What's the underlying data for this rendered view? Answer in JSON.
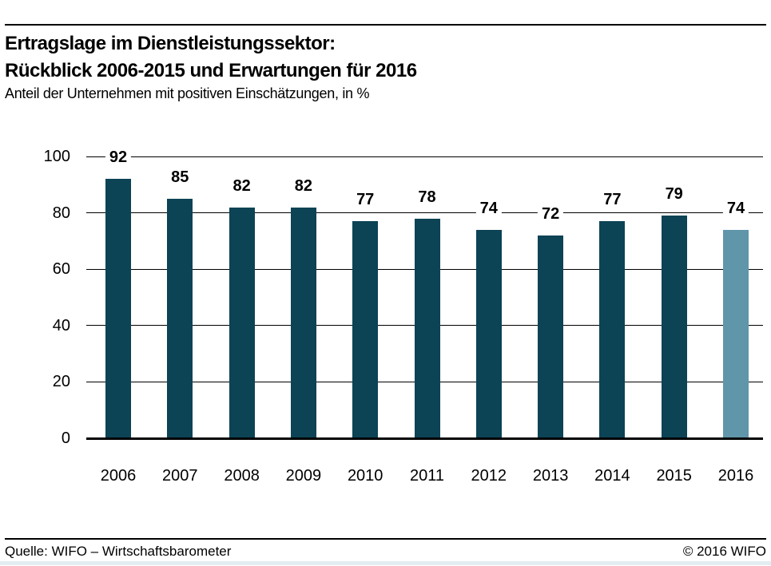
{
  "header": {
    "title_line1": "Ertragslage im Dienstleistungssektor:",
    "title_line2": "Rückblick 2006-2015 und Erwartungen für 2016",
    "subtitle": "Anteil der Unternehmen mit positiven Einschätzungen, in %"
  },
  "chart_data": {
    "type": "bar",
    "title": "Ertragslage im Dienstleistungssektor: Rückblick 2006-2015 und Erwartungen für 2016",
    "subtitle": "Anteil der Unternehmen mit positiven Einschätzungen, in %",
    "categories": [
      "2006",
      "2007",
      "2008",
      "2009",
      "2010",
      "2011",
      "2012",
      "2013",
      "2014",
      "2015",
      "2016"
    ],
    "values": [
      92,
      85,
      82,
      82,
      77,
      78,
      74,
      72,
      77,
      79,
      74
    ],
    "xlabel": "",
    "ylabel": "",
    "ylim": [
      0,
      100
    ],
    "yticks": [
      0,
      20,
      40,
      60,
      80,
      100
    ],
    "grid": true,
    "legend": "none",
    "bar_color": "#0c4355",
    "forecast_bar_color": "#6096aa",
    "forecast_index": 10,
    "value_labels_shown": true
  },
  "footer": {
    "source": "Quelle: WIFO – Wirtschaftsbarometer",
    "copyright": "© 2016 WIFO"
  }
}
